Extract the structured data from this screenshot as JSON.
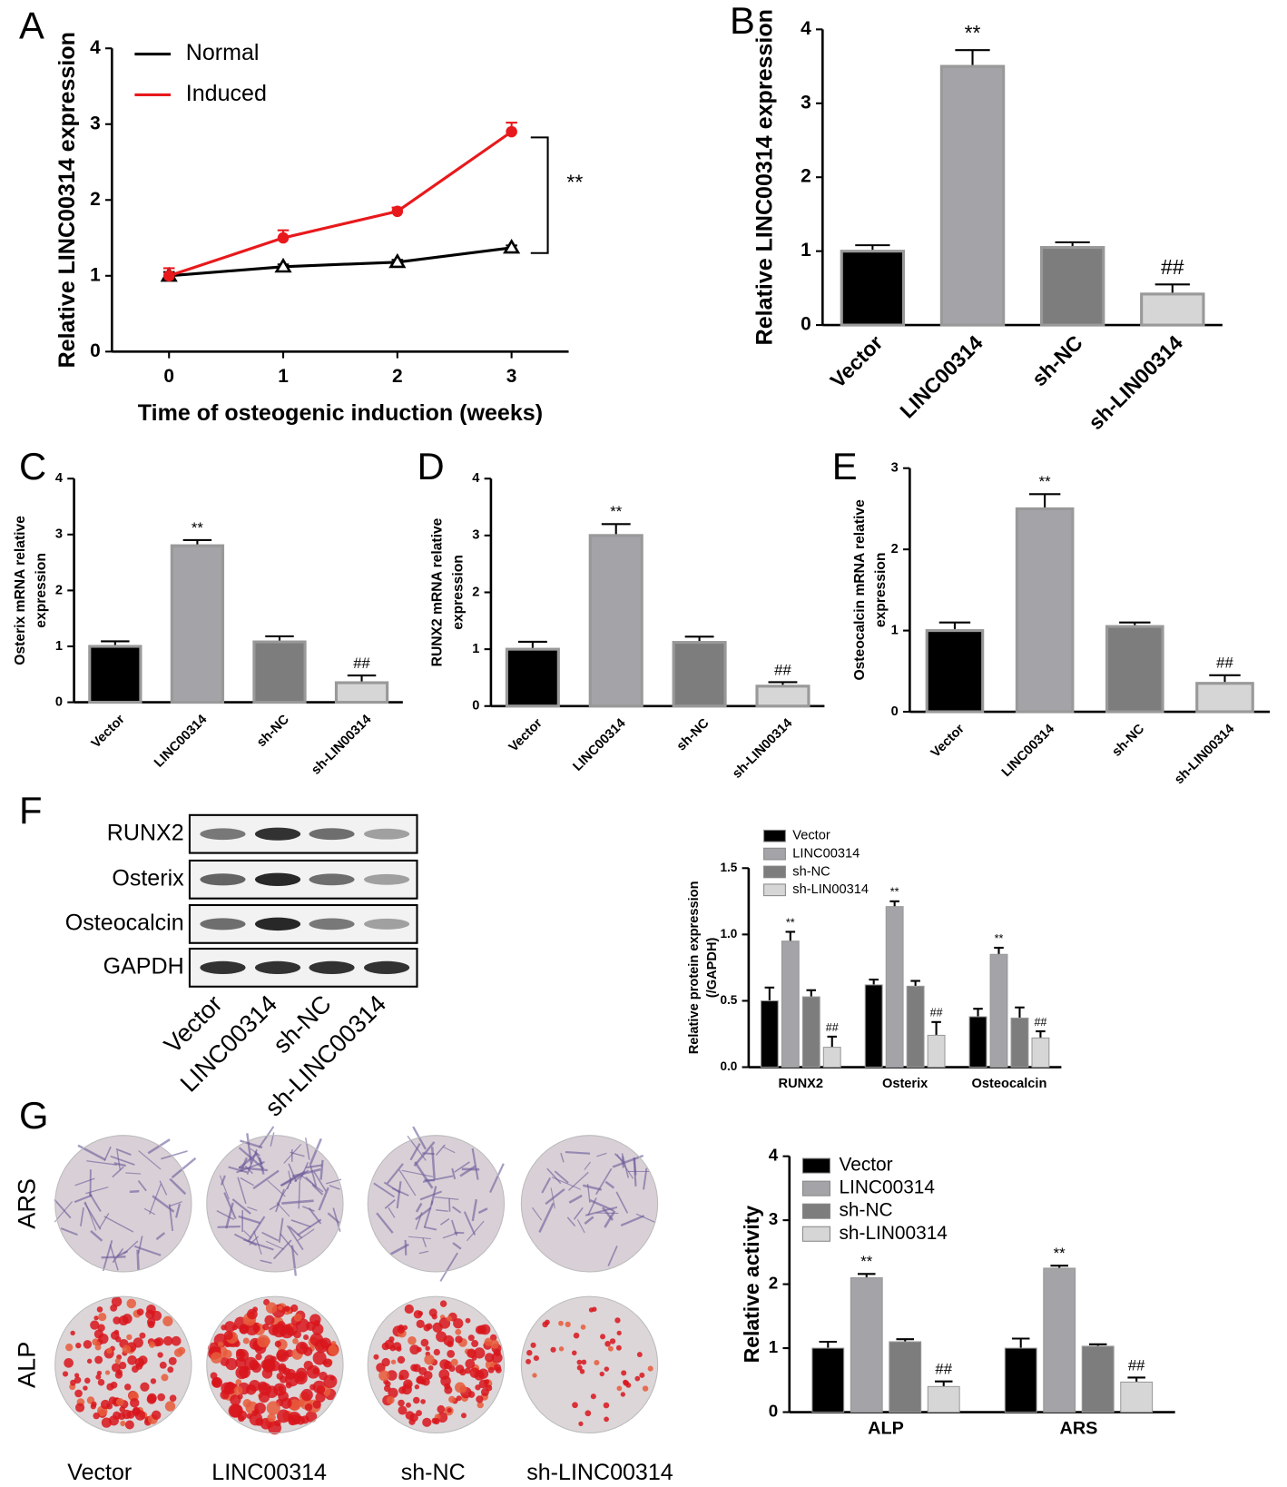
{
  "chart_data": [
    {
      "type": "line",
      "panel": "A",
      "x": [
        0,
        1,
        2,
        3
      ],
      "xlim": [
        -0.5,
        3.5
      ],
      "xticks": [
        0,
        1,
        2,
        3
      ],
      "ylim": [
        0,
        4
      ],
      "yticks": [
        0,
        1,
        2,
        3,
        4
      ],
      "ylabel": "Relative LINC00314 expression",
      "xlabel": "Time of osteogenic induction (weeks)",
      "annotation": "**",
      "legend": "upper left",
      "series": [
        {
          "name": "Normal",
          "color": "#000000",
          "marker": "triangle",
          "values": [
            1.0,
            1.12,
            1.18,
            1.37
          ],
          "errors": [
            0.05,
            0.03,
            0.03,
            0.03
          ]
        },
        {
          "name": "Induced",
          "color": "#e8191c",
          "marker": "circle",
          "values": [
            1.0,
            1.5,
            1.85,
            2.9
          ],
          "errors": [
            0.1,
            0.1,
            0.05,
            0.12
          ]
        }
      ]
    },
    {
      "type": "bar",
      "panel": "B",
      "categories": [
        "Vector",
        "LINC00314",
        "sh-NC",
        "sh-LIN00314"
      ],
      "values": [
        1.0,
        3.5,
        1.05,
        0.42
      ],
      "errors": [
        0.08,
        0.22,
        0.07,
        0.13
      ],
      "colors": [
        "#000000",
        "#a3a3a8",
        "#7d7d7d",
        "#d6d6d6"
      ],
      "annotations": [
        null,
        "**",
        null,
        "##"
      ],
      "ylim": [
        0,
        4
      ],
      "yticks": [
        0,
        1,
        2,
        3,
        4
      ],
      "ylabel": "Relative LINC00314 expression"
    },
    {
      "type": "bar",
      "panel": "C",
      "categories": [
        "Vector",
        "LINC00314",
        "sh-NC",
        "sh-LIN00314"
      ],
      "values": [
        1.0,
        2.8,
        1.08,
        0.35
      ],
      "errors": [
        0.09,
        0.1,
        0.1,
        0.13
      ],
      "colors": [
        "#000000",
        "#a3a3a8",
        "#7d7d7d",
        "#d6d6d6"
      ],
      "annotations": [
        null,
        "**",
        null,
        "##"
      ],
      "ylim": [
        0,
        4
      ],
      "yticks": [
        0,
        1,
        2,
        3,
        4
      ],
      "ylabel": [
        "Osterix  mRNA relative",
        "expression"
      ]
    },
    {
      "type": "bar",
      "panel": "D",
      "categories": [
        "Vector",
        "LINC00314",
        "sh-NC",
        "sh-LIN00314"
      ],
      "values": [
        1.0,
        3.0,
        1.12,
        0.35
      ],
      "errors": [
        0.13,
        0.2,
        0.1,
        0.07
      ],
      "colors": [
        "#000000",
        "#a3a3a8",
        "#7d7d7d",
        "#d6d6d6"
      ],
      "annotations": [
        null,
        "**",
        null,
        "##"
      ],
      "ylim": [
        0,
        4
      ],
      "yticks": [
        0,
        1,
        2,
        3,
        4
      ],
      "ylabel": [
        "RUNX2 mRNA relative",
        "expression"
      ]
    },
    {
      "type": "bar",
      "panel": "E",
      "categories": [
        "Vector",
        "LINC00314",
        "sh-NC",
        "sh-LIN00314"
      ],
      "values": [
        1.0,
        2.5,
        1.05,
        0.35
      ],
      "errors": [
        0.1,
        0.18,
        0.05,
        0.1
      ],
      "colors": [
        "#000000",
        "#a3a3a8",
        "#7d7d7d",
        "#d6d6d6"
      ],
      "annotations": [
        null,
        "**",
        null,
        "##"
      ],
      "ylim": [
        0,
        3
      ],
      "yticks": [
        0,
        1,
        2,
        3
      ],
      "ylabel": [
        "Osteocalcin mRNA relative",
        "expression"
      ]
    },
    {
      "type": "bar",
      "categories": [
        "RUNX2",
        "Osterix",
        "Osteocalcin"
      ],
      "ylim": [
        0,
        1.5
      ],
      "yticks": [
        {
          "value": 0,
          "label": "0.0"
        },
        0.5,
        {
          "value": 1,
          "label": "1.0"
        },
        1.5
      ],
      "ylabel": [
        "Relative protein expression",
        "(/GAPDH)"
      ],
      "legend": "upper left",
      "series": [
        {
          "name": "Vector",
          "color": "#000000",
          "values": [
            0.5,
            0.62,
            0.38
          ],
          "errors": [
            0.1,
            0.04,
            0.06
          ]
        },
        {
          "name": "LINC00314",
          "color": "#a3a3a8",
          "values": [
            0.95,
            1.21,
            0.85
          ],
          "errors": [
            0.07,
            0.04,
            0.05
          ],
          "annotations": [
            "**",
            "**",
            "**"
          ]
        },
        {
          "name": "sh-NC",
          "color": "#7d7d7d",
          "values": [
            0.53,
            0.61,
            0.37
          ],
          "errors": [
            0.05,
            0.04,
            0.08
          ]
        },
        {
          "name": "sh-LIN00314",
          "color": "#d6d6d6",
          "values": [
            0.15,
            0.24,
            0.22
          ],
          "errors": [
            0.08,
            0.1,
            0.05
          ],
          "annotations": [
            "##",
            "##",
            "##"
          ]
        }
      ]
    },
    {
      "type": "bar",
      "categories": [
        "ALP",
        "ARS"
      ],
      "ylim": [
        0,
        4
      ],
      "yticks": [
        0,
        1,
        2,
        3,
        4
      ],
      "ylabel": "Relative activity",
      "legend": "upper left",
      "series": [
        {
          "name": "Vector",
          "color": "#000000",
          "values": [
            1.0,
            1.0
          ],
          "errors": [
            0.1,
            0.15
          ]
        },
        {
          "name": "LINC00314",
          "color": "#a3a3a8",
          "values": [
            2.1,
            2.25
          ],
          "errors": [
            0.06,
            0.04
          ],
          "annotations": [
            "**",
            "**"
          ]
        },
        {
          "name": "sh-NC",
          "color": "#7d7d7d",
          "values": [
            1.1,
            1.03
          ],
          "errors": [
            0.04,
            0.03
          ]
        },
        {
          "name": "sh-LIN00314",
          "color": "#d6d6d6",
          "values": [
            0.4,
            0.47
          ],
          "errors": [
            0.08,
            0.07
          ],
          "annotations": [
            "##",
            "##"
          ]
        }
      ]
    }
  ],
  "blot": {
    "panel": "F",
    "rows": [
      "RUNX2",
      "Osterix",
      "Osteocalcin",
      "GAPDH"
    ],
    "columns": [
      "Vector",
      "LINC00314",
      "sh-NC",
      "sh-LINC00314"
    ]
  },
  "staining": {
    "panel": "G",
    "rows": [
      "ARS",
      "ALP"
    ],
    "columns": [
      "Vector",
      "LINC00314",
      "sh-NC",
      "sh-LINC00314"
    ]
  }
}
